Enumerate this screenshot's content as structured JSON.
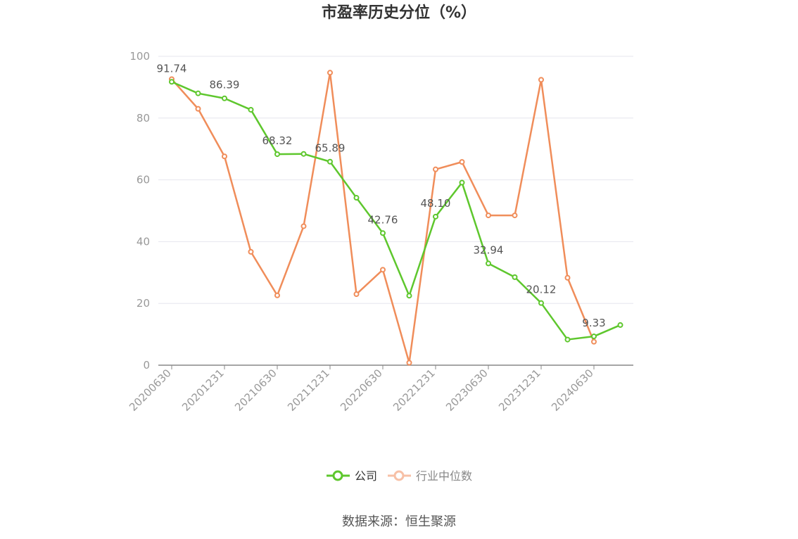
{
  "chart_data": {
    "type": "line",
    "title": "市盈率历史分位（%）",
    "source": "数据来源：恒生聚源",
    "ylim": [
      0,
      100
    ],
    "yticks": [
      0,
      20,
      40,
      60,
      80,
      100
    ],
    "x": [
      "20200630",
      "20200930",
      "20201231",
      "20210331",
      "20210630",
      "20210930",
      "20211231",
      "20220331",
      "20220630",
      "20220930",
      "20221231",
      "20230331",
      "20230630",
      "20230930",
      "20231231",
      "20240331",
      "20240630",
      "20240930"
    ],
    "xtick_labels": [
      "20200630",
      "",
      "20201231",
      "",
      "20210630",
      "",
      "20211231",
      "",
      "20220630",
      "",
      "20221231",
      "",
      "20230630",
      "",
      "20231231",
      "",
      "20240630",
      ""
    ],
    "grid": true,
    "legend_position": "bottom-center",
    "series": [
      {
        "name": "公司",
        "color": "#5ec72d",
        "values": [
          91.74,
          88.0,
          86.39,
          82.7,
          68.32,
          68.4,
          65.89,
          54.2,
          42.76,
          22.5,
          48.1,
          59.1,
          32.94,
          28.5,
          20.12,
          8.3,
          9.33,
          13.0
        ],
        "labels": [
          "91.74",
          "",
          "86.39",
          "",
          "68.32",
          "",
          "65.89",
          "",
          "42.76",
          "",
          "48.10",
          "",
          "32.94",
          "",
          "20.12",
          "",
          "9.33",
          ""
        ]
      },
      {
        "name": "行业中位数",
        "color": "#f08d5a",
        "values": [
          92.6,
          83.0,
          67.6,
          36.7,
          22.6,
          45.0,
          94.7,
          23.0,
          30.9,
          0.8,
          63.4,
          65.8,
          48.5,
          48.5,
          92.4,
          28.3,
          7.6,
          null
        ]
      }
    ]
  },
  "legend_icons": [
    "circle-marker-icon",
    "circle-marker-icon"
  ]
}
